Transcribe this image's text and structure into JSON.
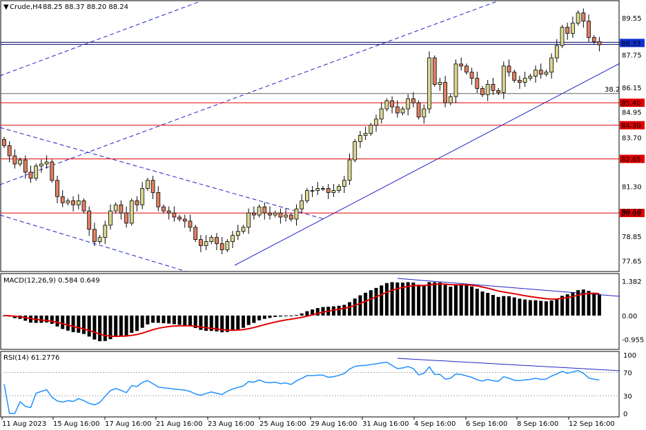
{
  "chart_data": {
    "type": "candlestick",
    "symbol": "Crude,H4",
    "ohlc_readout": "88.25 88.37 88.20 88.24",
    "price_axis_ticks": [
      "89.55",
      "87.75",
      "86.15",
      "84.95",
      "83.70",
      "81.30",
      "80.10",
      "78.85",
      "77.65"
    ],
    "price_range": [
      77.2,
      90.3
    ],
    "current_price_label": "88.33",
    "horizontal_levels": [
      {
        "value": 85.4,
        "label": "85.40",
        "color": "#e00000"
      },
      {
        "value": 84.3,
        "label": "84.30",
        "color": "#e00000"
      },
      {
        "value": 82.65,
        "label": "82.65",
        "color": "#e00000"
      },
      {
        "value": 80.0,
        "label": "80.00",
        "color": "#e00000"
      }
    ],
    "fib_level": {
      "value": 85.85,
      "label": "38.2"
    },
    "time_axis_labels": [
      "11 Aug 2023",
      "15 Aug 16:00",
      "17 Aug 16:00",
      "21 Aug 16:00",
      "23 Aug 16:00",
      "25 Aug 16:00",
      "29 Aug 16:00",
      "31 Aug 16:00",
      "4 Sep 16:00",
      "6 Sep 16:00",
      "8 Sep 16:00",
      "12 Sep 16:00"
    ],
    "closes": [
      83.3,
      82.8,
      82.4,
      82.6,
      82.0,
      81.7,
      82.3,
      82.4,
      82.5,
      81.6,
      80.8,
      80.5,
      80.6,
      80.4,
      80.6,
      80.1,
      79.2,
      78.6,
      78.8,
      79.4,
      80.1,
      80.4,
      80.0,
      79.5,
      80.6,
      80.4,
      81.2,
      81.6,
      81.0,
      80.3,
      80.1,
      80.0,
      79.8,
      79.7,
      79.6,
      79.3,
      78.7,
      78.4,
      78.6,
      78.8,
      78.5,
      78.2,
      78.6,
      78.9,
      79.1,
      79.3,
      80.0,
      79.9,
      80.3,
      80.0,
      79.9,
      80.0,
      79.8,
      79.9,
      79.7,
      80.2,
      80.6,
      81.1,
      81.1,
      81.2,
      81.2,
      81.0,
      81.1,
      81.3,
      81.6,
      82.6,
      83.5,
      83.8,
      83.9,
      84.3,
      84.6,
      85.1,
      85.5,
      85.2,
      84.9,
      85.1,
      85.6,
      85.4,
      84.7,
      85.1,
      87.6,
      86.3,
      86.4,
      85.4,
      85.7,
      87.3,
      87.2,
      86.9,
      86.6,
      86.1,
      85.8,
      86.3,
      86.0,
      85.9,
      87.2,
      86.9,
      86.5,
      86.4,
      86.6,
      86.7,
      87.0,
      86.8,
      86.9,
      87.6,
      88.2,
      89.1,
      88.8,
      89.3,
      89.8,
      89.4,
      88.6,
      88.4,
      88.24
    ],
    "macd": {
      "label": "MACD(12,26,9) 0.584 0.649",
      "axis_ticks": [
        "1.382",
        "0.00",
        "-0.955"
      ],
      "range": [
        -1.3,
        1.6
      ]
    },
    "rsi": {
      "label": "RSI(14) 61.2776",
      "axis_ticks": [
        "100",
        "70",
        "30",
        "0"
      ],
      "levels": [
        70,
        30
      ]
    }
  },
  "colors": {
    "bull": "#d8d890",
    "bear": "#e08060",
    "trend": "#2020c8",
    "level": "#e00000",
    "macd_signal": "#e00000",
    "rsi": "#1e90ff"
  }
}
